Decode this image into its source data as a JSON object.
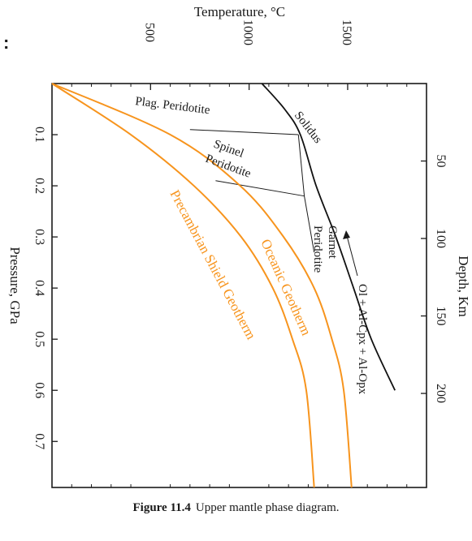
{
  "stray_mark": ":",
  "caption": {
    "figure_number": "Figure 11.4",
    "text": "Upper mantle phase diagram."
  },
  "chart_data": {
    "type": "line",
    "title": "",
    "axes": {
      "temperature": {
        "label": "Temperature, °C",
        "ticks": [
          "500",
          "1000",
          "1500"
        ],
        "range": [
          0,
          1900
        ]
      },
      "pressure": {
        "label": "Pressure, GPa",
        "ticks": [
          "0.1",
          "0.2",
          "0.3",
          "0.4",
          "0.5",
          "0.6",
          "0.7"
        ],
        "range": [
          0,
          0.79
        ]
      },
      "depth": {
        "label": "Depth, Km",
        "ticks": [
          "50",
          "100",
          "150",
          "200"
        ],
        "unit": "km"
      }
    },
    "series": [
      {
        "name": "Solidus",
        "color": "#111111",
        "points": [
          [
            1065,
            0.0
          ],
          [
            1180,
            0.05
          ],
          [
            1260,
            0.1
          ],
          [
            1340,
            0.2
          ],
          [
            1440,
            0.3
          ],
          [
            1530,
            0.4
          ],
          [
            1620,
            0.5
          ],
          [
            1740,
            0.6
          ]
        ]
      },
      {
        "name": "Oceanic Geotherm",
        "color": "#f7941d",
        "points": [
          [
            0,
            0.0
          ],
          [
            600,
            0.1
          ],
          [
            955,
            0.2
          ],
          [
            1175,
            0.3
          ],
          [
            1330,
            0.4
          ],
          [
            1420,
            0.5
          ],
          [
            1480,
            0.6
          ],
          [
            1520,
            0.79
          ]
        ]
      },
      {
        "name": "Precambrian Shield Geotherm",
        "color": "#f7941d",
        "points": [
          [
            0,
            0.0
          ],
          [
            400,
            0.1
          ],
          [
            720,
            0.2
          ],
          [
            960,
            0.3
          ],
          [
            1120,
            0.4
          ],
          [
            1220,
            0.5
          ],
          [
            1290,
            0.6
          ],
          [
            1330,
            0.79
          ]
        ]
      }
    ],
    "boundaries": [
      {
        "name": "plag-spinel",
        "points": [
          [
            700,
            0.09
          ],
          [
            1250,
            0.1
          ]
        ]
      },
      {
        "name": "spinel-garnet",
        "points": [
          [
            830,
            0.19
          ],
          [
            1280,
            0.22
          ]
        ]
      },
      {
        "name": "phase-vertical",
        "points": [
          [
            1250,
            0.1
          ],
          [
            1280,
            0.22
          ],
          [
            1330,
            0.33
          ]
        ]
      }
    ],
    "labels": {
      "plag": "Plag. Peridotite",
      "spinel_1": "Spinel",
      "spinel_2": "Peridotite",
      "garnet_1": "Garnet",
      "garnet_2": "Peridotite",
      "assemblage": "Ol + Al-Cpx + Al-Opx",
      "solidus": "Solidus",
      "oceanic": "Oceanic Geotherm",
      "shield": "Precambrian Shield Geotherm"
    },
    "colors": {
      "geotherm": "#f7941d",
      "axis": "#1a1a1a"
    },
    "grid": false
  }
}
